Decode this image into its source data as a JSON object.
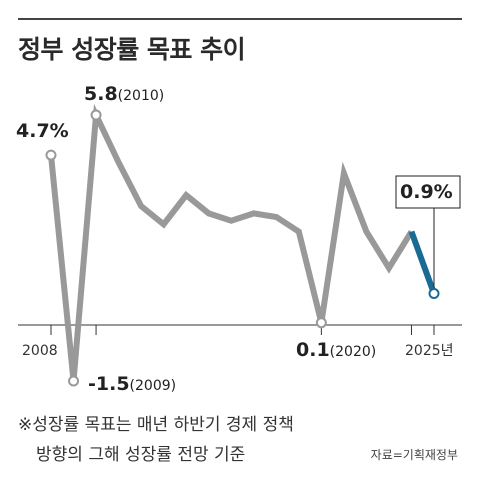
{
  "title": "정부 성장률 목표 추이",
  "chart_data": {
    "type": "line",
    "x": [
      2008,
      2009,
      2010,
      2011,
      2012,
      2013,
      2014,
      2015,
      2016,
      2017,
      2018,
      2019,
      2020,
      2021,
      2022,
      2023,
      2024,
      2025
    ],
    "series": [
      {
        "name": "",
        "color": "#999999",
        "values": [
          4.7,
          -1.5,
          5.8,
          4.5,
          3.3,
          2.8,
          3.6,
          3.1,
          2.9,
          3.1,
          3.0,
          2.6,
          0.1,
          4.2,
          2.6,
          1.6,
          2.6,
          null
        ]
      },
      {
        "name": "",
        "color": "#1a6b94",
        "values": [
          null,
          null,
          null,
          null,
          null,
          null,
          null,
          null,
          null,
          null,
          null,
          null,
          null,
          null,
          null,
          null,
          2.6,
          0.9
        ]
      }
    ],
    "annotations": [
      {
        "x": 2008,
        "y": 4.7,
        "value": "4.7%",
        "year": ""
      },
      {
        "x": 2010,
        "y": 5.8,
        "value": "5.8",
        "year": "(2010)"
      },
      {
        "x": 2009,
        "y": -1.5,
        "value": "-1.5",
        "year": "(2009)"
      },
      {
        "x": 2020,
        "y": 0.1,
        "value": "0.1",
        "year": "(2020)"
      },
      {
        "x": 2025,
        "y": 0.9,
        "value": "0.9%",
        "year": "",
        "boxed": true
      }
    ],
    "tick_labels": [
      "2008",
      "2025년"
    ],
    "ylim": [
      -1.5,
      5.8
    ],
    "xlabel": "",
    "ylabel": ""
  },
  "note": {
    "line1": "※성장률 목표는 매년 하반기 경제 정책",
    "line2": "방향의 그해 성장률 전망 기준"
  },
  "source": "자료=기획재정부"
}
